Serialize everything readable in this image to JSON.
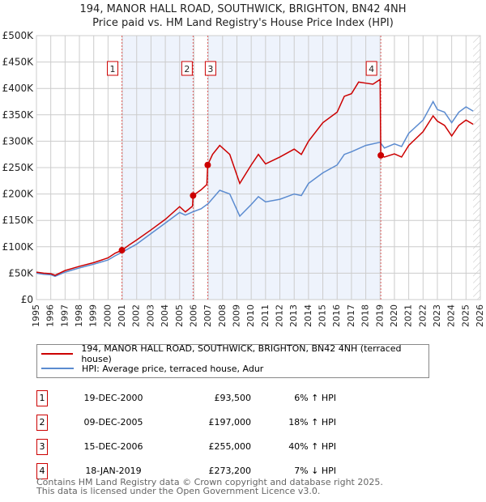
{
  "chart_data": {
    "type": "line",
    "title": "194, MANOR HALL ROAD, SOUTHWICK, BRIGHTON, BN42 4NH",
    "subtitle": "Price paid vs. HM Land Registry's House Price Index (HPI)",
    "xlim": [
      1995,
      2026
    ],
    "ylim": [
      0,
      500000
    ],
    "x_ticks": [
      "1995",
      "1996",
      "1997",
      "1998",
      "1999",
      "2000",
      "2001",
      "2002",
      "2003",
      "2004",
      "2005",
      "2006",
      "2007",
      "2008",
      "2009",
      "2010",
      "2011",
      "2012",
      "2013",
      "2014",
      "2015",
      "2016",
      "2017",
      "2018",
      "2019",
      "2020",
      "2021",
      "2022",
      "2023",
      "2024",
      "2025",
      "2026"
    ],
    "y_ticks": [
      {
        "v": 0,
        "label": "£0"
      },
      {
        "v": 50000,
        "label": "£50K"
      },
      {
        "v": 100000,
        "label": "£100K"
      },
      {
        "v": 150000,
        "label": "£150K"
      },
      {
        "v": 200000,
        "label": "£200K"
      },
      {
        "v": 250000,
        "label": "£250K"
      },
      {
        "v": 300000,
        "label": "£300K"
      },
      {
        "v": 350000,
        "label": "£350K"
      },
      {
        "v": 400000,
        "label": "£400K"
      },
      {
        "v": 450000,
        "label": "£450K"
      },
      {
        "v": 500000,
        "label": "£500K"
      }
    ],
    "grid": true,
    "series": [
      {
        "name": "194, MANOR HALL ROAD, SOUTHWICK, BRIGHTON, BN42 4NH (terraced house)",
        "color": "#cc0000",
        "x": [
          1995,
          1995.5,
          1996,
          1996.3,
          1997,
          1998,
          1999,
          2000,
          2000.5,
          2000.97,
          2001.5,
          2002,
          2003,
          2004,
          2005,
          2005.4,
          2005.9,
          2005.94,
          2006.5,
          2006.9,
          2006.96,
          2007.3,
          2007.8,
          2008.5,
          2009.2,
          2010,
          2010.5,
          2011,
          2012,
          2013,
          2013.5,
          2014,
          2015,
          2016,
          2016.5,
          2017,
          2017.5,
          2018,
          2018.5,
          2019.0,
          2019.05,
          2019.3,
          2020,
          2020.5,
          2021,
          2022,
          2022.7,
          2023,
          2023.5,
          2024,
          2024.5,
          2025,
          2025.5
        ],
        "y": [
          52000,
          50000,
          49000,
          46000,
          55000,
          63000,
          70000,
          79000,
          88000,
          93500,
          104000,
          113000,
          132000,
          152000,
          176000,
          166000,
          177000,
          197000,
          208000,
          218000,
          255000,
          275000,
          292000,
          275000,
          220000,
          255000,
          275000,
          257000,
          270000,
          285000,
          275000,
          300000,
          335000,
          355000,
          385000,
          390000,
          412000,
          410000,
          408000,
          417000,
          273200,
          270000,
          276000,
          270000,
          292000,
          318000,
          348000,
          338000,
          330000,
          310000,
          330000,
          340000,
          332000
        ]
      },
      {
        "name": "HPI: Average price, terraced house, Adur",
        "color": "#5b8bd0",
        "x": [
          1995,
          1995.5,
          1996,
          1996.3,
          1997,
          1998,
          1999,
          2000,
          2000.5,
          2001,
          2002,
          2003,
          2004,
          2005,
          2005.4,
          2006,
          2006.5,
          2007,
          2007.8,
          2008.5,
          2009.2,
          2010,
          2010.5,
          2011,
          2012,
          2013,
          2013.5,
          2014,
          2015,
          2016,
          2016.5,
          2017,
          2018,
          2019,
          2019.3,
          2020,
          2020.5,
          2021,
          2022,
          2022.7,
          2023,
          2023.5,
          2024,
          2024.5,
          2025,
          2025.5
        ],
        "y": [
          50000,
          48000,
          47000,
          44000,
          52000,
          60000,
          67000,
          75000,
          83000,
          90000,
          105000,
          125000,
          145000,
          165000,
          160000,
          167000,
          172000,
          182000,
          207000,
          200000,
          158000,
          180000,
          195000,
          185000,
          190000,
          200000,
          197000,
          220000,
          240000,
          255000,
          275000,
          280000,
          292000,
          298000,
          287000,
          295000,
          290000,
          315000,
          340000,
          375000,
          360000,
          355000,
          335000,
          355000,
          365000,
          357000
        ]
      }
    ],
    "sales": [
      {
        "n": "1",
        "x": 2000.97,
        "y": 93500,
        "date": "19-DEC-2000",
        "price": "£93,500",
        "hpi": "6% ↑ HPI"
      },
      {
        "n": "2",
        "x": 2005.94,
        "y": 197000,
        "date": "09-DEC-2005",
        "price": "£197,000",
        "hpi": "18% ↑ HPI"
      },
      {
        "n": "3",
        "x": 2006.96,
        "y": 255000,
        "date": "15-DEC-2006",
        "price": "£255,000",
        "hpi": "40% ↑ HPI"
      },
      {
        "n": "4",
        "x": 2019.05,
        "y": 273200,
        "date": "18-JAN-2019",
        "price": "£273,200",
        "hpi": "7% ↓ HPI"
      }
    ],
    "shaded_ranges": [
      [
        2000.97,
        2005.94
      ],
      [
        2006.96,
        2019.05
      ]
    ],
    "hatched_from": 2025.5
  },
  "footer": {
    "line1": "Contains HM Land Registry data © Crown copyright and database right 2025.",
    "line2": "This data is licensed under the Open Government Licence v3.0."
  }
}
